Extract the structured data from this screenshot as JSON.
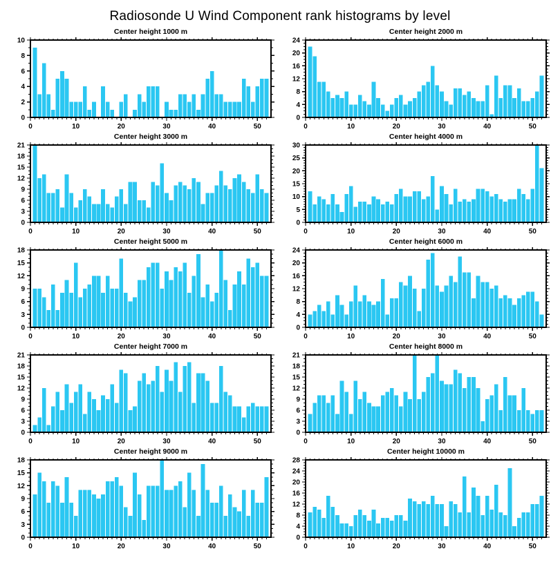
{
  "page": {
    "title": "Radiosonde U Wind Component rank histograms by level"
  },
  "style": {
    "bar_color": "#2BC7F2",
    "axis_color": "#000000",
    "background": "#ffffff"
  },
  "axes": {
    "x_max": 53,
    "x_major_ticks": [
      0,
      10,
      20,
      30,
      40,
      50
    ],
    "x_minor_step": 1,
    "y_minor_step": 1
  },
  "chart_data": [
    {
      "type": "bar",
      "title": "Center height 1000 m",
      "ymax": 10,
      "ystep": 2,
      "values": [
        9,
        3,
        7,
        3,
        1,
        5,
        6,
        5,
        2,
        2,
        2,
        4,
        1,
        2,
        0,
        4,
        2,
        1,
        0,
        2,
        3,
        0,
        1,
        3,
        2,
        4,
        4,
        4,
        0,
        2,
        1,
        1,
        3,
        3,
        2,
        3,
        1,
        3,
        5,
        6,
        3,
        3,
        2,
        2,
        2,
        2,
        5,
        4,
        2,
        4,
        5,
        5
      ]
    },
    {
      "type": "bar",
      "title": "Center height 2000 m",
      "ymax": 24,
      "ystep": 4,
      "values": [
        22,
        19,
        11,
        11,
        8,
        6,
        7,
        6,
        8,
        4,
        4,
        7,
        5,
        4,
        11,
        6,
        4,
        2,
        4,
        6,
        7,
        4,
        5,
        6,
        8,
        10,
        11,
        16,
        10,
        8,
        5,
        4,
        9,
        9,
        7,
        8,
        6,
        5,
        5,
        10,
        1,
        13,
        6,
        10,
        10,
        6,
        9,
        5,
        5,
        6,
        8,
        13
      ]
    },
    {
      "type": "bar",
      "title": "Center height 3000 m",
      "ymax": 21,
      "ystep": 3,
      "values": [
        21,
        12,
        13,
        8,
        8,
        9,
        4,
        13,
        8,
        4,
        6,
        9,
        7,
        5,
        5,
        9,
        5,
        4,
        7,
        9,
        5,
        11,
        11,
        6,
        6,
        4,
        11,
        10,
        16,
        8,
        6,
        10,
        11,
        10,
        9,
        12,
        11,
        5,
        8,
        8,
        10,
        14,
        10,
        9,
        12,
        13,
        11,
        9,
        8,
        13,
        9,
        8
      ]
    },
    {
      "type": "bar",
      "title": "Center height 4000 m",
      "ymax": 30,
      "ystep": 5,
      "values": [
        12,
        7,
        10,
        9,
        7,
        11,
        7,
        4,
        11,
        14,
        6,
        8,
        8,
        7,
        10,
        9,
        7,
        8,
        7,
        11,
        13,
        10,
        10,
        12,
        12,
        9,
        10,
        18,
        5,
        14,
        11,
        7,
        13,
        8,
        9,
        8,
        9,
        13,
        13,
        12,
        10,
        11,
        9,
        8,
        9,
        9,
        13,
        11,
        9,
        13,
        30,
        21
      ]
    },
    {
      "type": "bar",
      "title": "Center height 5000 m",
      "ymax": 18,
      "ystep": 3,
      "values": [
        9,
        9,
        7,
        4,
        10,
        4,
        8,
        11,
        8,
        15,
        7,
        9,
        10,
        12,
        12,
        8,
        12,
        9,
        9,
        16,
        8,
        6,
        7,
        11,
        11,
        14,
        15,
        15,
        9,
        13,
        11,
        14,
        13,
        15,
        8,
        12,
        17,
        7,
        10,
        6,
        8,
        18,
        11,
        4,
        10,
        13,
        10,
        16,
        14,
        15,
        12,
        12
      ]
    },
    {
      "type": "bar",
      "title": "Center height 6000 m",
      "ymax": 24,
      "ystep": 4,
      "values": [
        4,
        5,
        7,
        5,
        8,
        4,
        10,
        7,
        4,
        8,
        13,
        8,
        10,
        8,
        7,
        8,
        15,
        4,
        9,
        9,
        14,
        13,
        16,
        12,
        5,
        12,
        21,
        23,
        13,
        11,
        13,
        16,
        14,
        22,
        17,
        17,
        9,
        16,
        14,
        14,
        12,
        13,
        9,
        10,
        9,
        7,
        9,
        10,
        11,
        11,
        8,
        4
      ]
    },
    {
      "type": "bar",
      "title": "Center height 7000 m",
      "ymax": 21,
      "ystep": 3,
      "values": [
        2,
        4,
        12,
        2,
        7,
        11,
        6,
        13,
        8,
        11,
        13,
        5,
        11,
        9,
        6,
        10,
        9,
        13,
        8,
        17,
        16,
        6,
        7,
        14,
        16,
        13,
        14,
        18,
        11,
        17,
        14,
        19,
        11,
        18,
        19,
        8,
        16,
        16,
        14,
        8,
        8,
        18,
        11,
        10,
        7,
        7,
        4,
        7,
        8,
        7,
        7,
        7
      ]
    },
    {
      "type": "bar",
      "title": "Center height 8000 m",
      "ymax": 21,
      "ystep": 3,
      "values": [
        5,
        8,
        10,
        10,
        8,
        10,
        5,
        14,
        11,
        5,
        14,
        9,
        11,
        8,
        7,
        7,
        10,
        11,
        12,
        10,
        7,
        11,
        9,
        21,
        9,
        11,
        15,
        16,
        21,
        14,
        13,
        13,
        17,
        16,
        12,
        15,
        15,
        12,
        3,
        9,
        10,
        13,
        6,
        15,
        10,
        10,
        6,
        12,
        6,
        5,
        6,
        6
      ]
    },
    {
      "type": "bar",
      "title": "Center height 9000 m",
      "ymax": 18,
      "ystep": 3,
      "values": [
        10,
        15,
        13,
        8,
        13,
        12,
        8,
        14,
        8,
        5,
        11,
        11,
        11,
        10,
        9,
        10,
        13,
        13,
        14,
        12,
        7,
        5,
        15,
        10,
        4,
        12,
        12,
        12,
        18,
        11,
        11,
        12,
        13,
        7,
        15,
        11,
        5,
        17,
        11,
        8,
        8,
        12,
        5,
        10,
        7,
        6,
        11,
        5,
        11,
        8,
        8,
        14
      ]
    },
    {
      "type": "bar",
      "title": "Center height 10000 m",
      "ymax": 28,
      "ystep": 4,
      "values": [
        9,
        11,
        10,
        7,
        15,
        11,
        8,
        5,
        5,
        4,
        8,
        10,
        8,
        6,
        10,
        5,
        7,
        7,
        6,
        8,
        8,
        6,
        14,
        13,
        12,
        13,
        12,
        15,
        12,
        12,
        4,
        13,
        12,
        9,
        22,
        9,
        18,
        15,
        8,
        15,
        10,
        19,
        9,
        8,
        25,
        4,
        7,
        9,
        9,
        12,
        12,
        15
      ]
    }
  ]
}
